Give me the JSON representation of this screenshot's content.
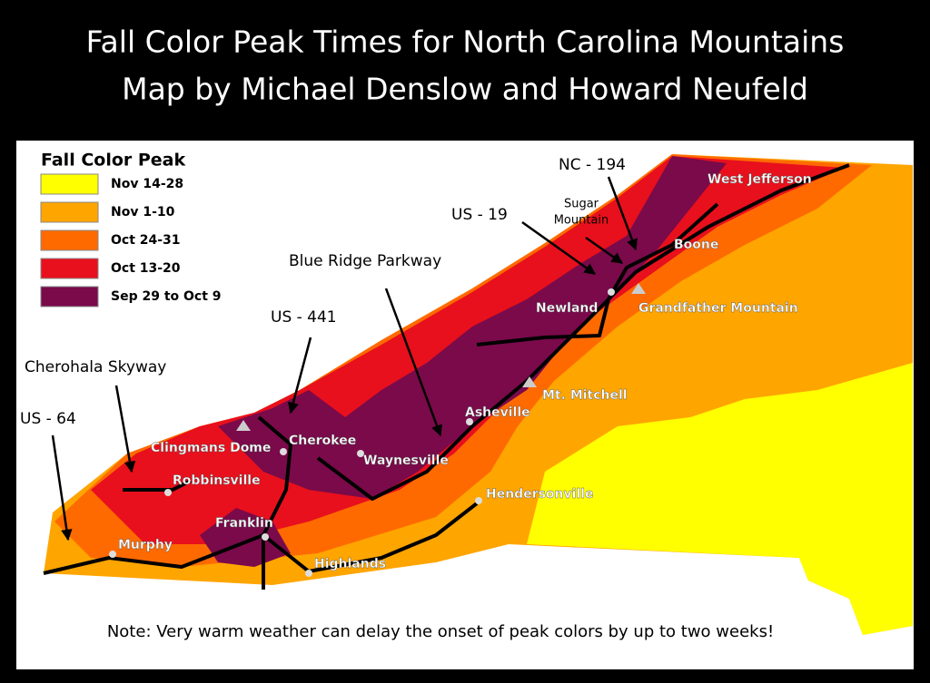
{
  "title": [
    "Fall Color Peak Times for North Carolina Mountains",
    "Map by Michael Denslow and Howard Neufeld"
  ],
  "legend": {
    "title": "Fall Color Peak",
    "items": [
      {
        "label": "Nov 14-28",
        "color": "#ffff00"
      },
      {
        "label": "Nov 1-10",
        "color": "#ffa500"
      },
      {
        "label": "Oct 24-31",
        "color": "#ff6a00"
      },
      {
        "label": "Oct 13-20",
        "color": "#e8101c"
      },
      {
        "label": "Sep 29 to Oct 9",
        "color": "#7a0a4a"
      }
    ]
  },
  "routes": [
    "NC - 194",
    "US - 19",
    "Blue Ridge Parkway",
    "US - 441",
    "Cherohala Skyway",
    "US - 64"
  ],
  "sugar_mountain": [
    "Sugar",
    "Mountain"
  ],
  "places": [
    "West Jefferson",
    "Boone",
    "Newland",
    "Grandfather Mountain",
    "Mt. Mitchell",
    "Asheville",
    "Cherokee",
    "Waynesville",
    "Clingmans Dome",
    "Robbinsville",
    "Hendersonville",
    "Franklin",
    "Murphy",
    "Highlands"
  ],
  "note": "Note: Very warm weather can delay the onset of peak colors by up to two weeks!"
}
